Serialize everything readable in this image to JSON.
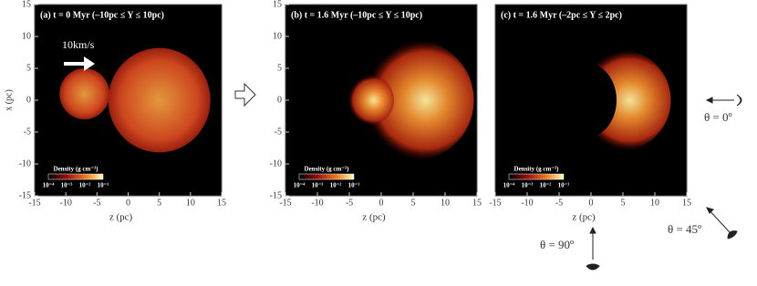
{
  "chart_data": [
    {
      "type": "image",
      "title": "(a) t = 0 Myr   (–10pc ≤ Y ≤ 10pc)",
      "xlabel": "z (pc)",
      "ylabel": "x (pc)",
      "xlim": [
        -15,
        15
      ],
      "ylim": [
        -15,
        15
      ],
      "xticks": [
        -15,
        -10,
        -5,
        0,
        5,
        10,
        15
      ],
      "yticks": [
        -15,
        -10,
        -5,
        0,
        5,
        10,
        15
      ],
      "colorbar_label": "Density (g cm⁻³)",
      "colorbar_ticks": [
        "10⁻⁴",
        "10⁻³",
        "10⁻²",
        "10⁻¹"
      ]
    },
    {
      "type": "image",
      "title": "(b) t = 1.6 Myr   (–10pc ≤ Y ≤ 10pc)",
      "xlabel": "z (pc)",
      "xlim": [
        -15,
        15
      ],
      "ylim": [
        -15,
        15
      ],
      "xticks": [
        -15,
        -10,
        -5,
        0,
        5,
        10,
        15
      ],
      "yticks": [
        -15,
        -10,
        -5,
        0,
        5,
        10,
        15
      ],
      "colorbar_label": "Density (g cm⁻³)",
      "colorbar_ticks": [
        "10⁻⁴",
        "10⁻³",
        "10⁻²",
        "10⁻¹"
      ]
    },
    {
      "type": "image",
      "title": "(c) t = 1.6 Myr   (–2pc ≤ Y ≤ 2pc)",
      "xlabel": "z (pc)",
      "xlim": [
        -15,
        15
      ],
      "ylim": [
        -15,
        15
      ],
      "xticks": [
        -15,
        -10,
        -5,
        0,
        5,
        10,
        15
      ],
      "colorbar_label": "Density (g cm⁻³)",
      "colorbar_ticks": [
        "10⁻⁴",
        "10⁻³",
        "10⁻²",
        "10⁻¹"
      ]
    }
  ],
  "annotations": {
    "velocity": "10km/s",
    "theta0": "θ = 0º",
    "theta45": "θ = 45º",
    "theta90": "θ = 90º"
  }
}
